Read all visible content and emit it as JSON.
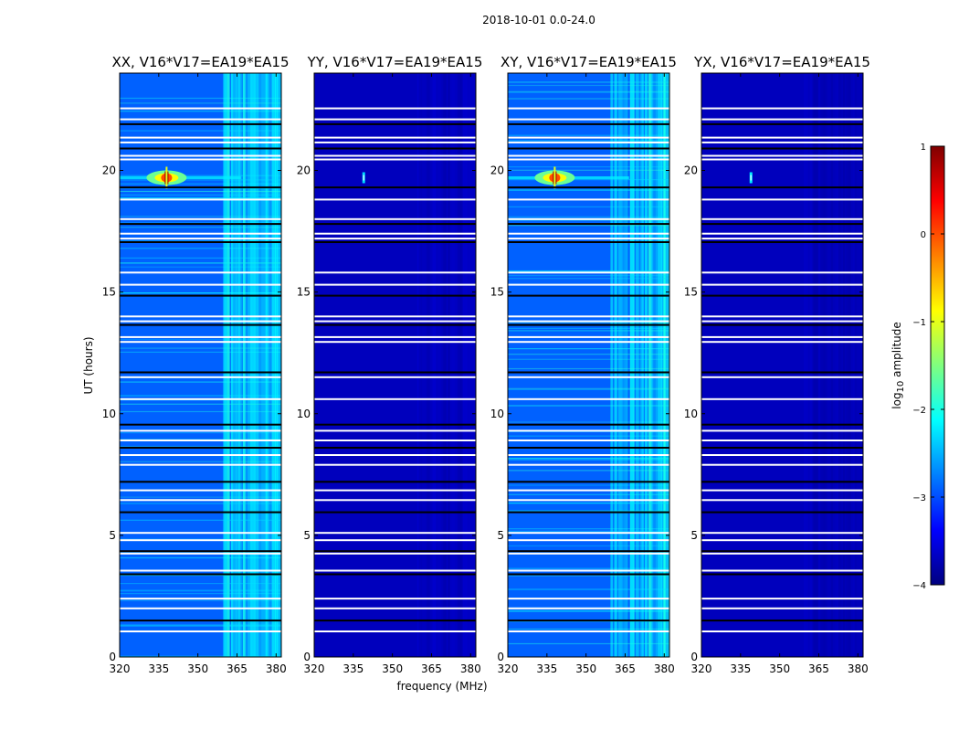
{
  "chart_data": {
    "type": "heatmap",
    "suptitle": "2018-10-01 0.0-24.0",
    "xlabel": "frequency (MHz)",
    "ylabel": "UT (hours)",
    "xlim": [
      320,
      382
    ],
    "ylim": [
      0,
      24
    ],
    "xticks": [
      320,
      335,
      350,
      365,
      380
    ],
    "yticks": [
      0,
      5,
      10,
      15,
      20
    ],
    "colorbar": {
      "label": "log10 amplitude",
      "label_prefix": "log",
      "label_sub": "10",
      "label_suffix": " amplitude",
      "range": [
        -4,
        1
      ],
      "ticks": [
        "1",
        "0",
        "−1",
        "−2",
        "−3",
        "−4"
      ],
      "colormap": "jet"
    },
    "rfi_band_mhz": [
      359,
      381
    ],
    "flagged_hours": [
      1.05,
      1.5,
      2.0,
      2.4,
      3.4,
      3.55,
      4.25,
      4.35,
      4.8,
      5.1,
      5.95,
      6.45,
      6.85,
      7.2,
      7.9,
      8.3,
      8.6,
      8.9,
      9.3,
      9.55,
      10.6,
      11.5,
      11.7,
      12.95,
      13.15,
      13.65,
      13.8,
      14.0,
      14.85,
      15.3,
      15.8,
      17.05,
      17.2,
      17.4,
      17.8,
      18.0,
      18.8,
      19.3,
      20.45,
      20.6,
      20.9,
      21.15,
      21.35,
      21.9,
      22.1,
      22.55
    ],
    "panels": [
      {
        "title": "XX, V16*V17=EA19*EA15",
        "background_level": -2.9,
        "rfi_level": -2.3,
        "source": {
          "freq_mhz": 338,
          "ut_hours": 19.7,
          "peak": 0.9
        }
      },
      {
        "title": "YY, V16*V17=EA19*EA15",
        "background_level": -3.7,
        "rfi_level": -3.7,
        "source": {
          "freq_mhz": 339,
          "ut_hours": 19.7,
          "peak": -2.3
        }
      },
      {
        "title": "XY, V16*V17=EA19*EA15",
        "background_level": -2.9,
        "rfi_level": -2.3,
        "source": {
          "freq_mhz": 338,
          "ut_hours": 19.7,
          "peak": 0.9
        }
      },
      {
        "title": "YX, V16*V17=EA19*EA15",
        "background_level": -3.7,
        "rfi_level": -3.7,
        "source": {
          "freq_mhz": 339,
          "ut_hours": 19.7,
          "peak": -2.2
        }
      }
    ]
  }
}
